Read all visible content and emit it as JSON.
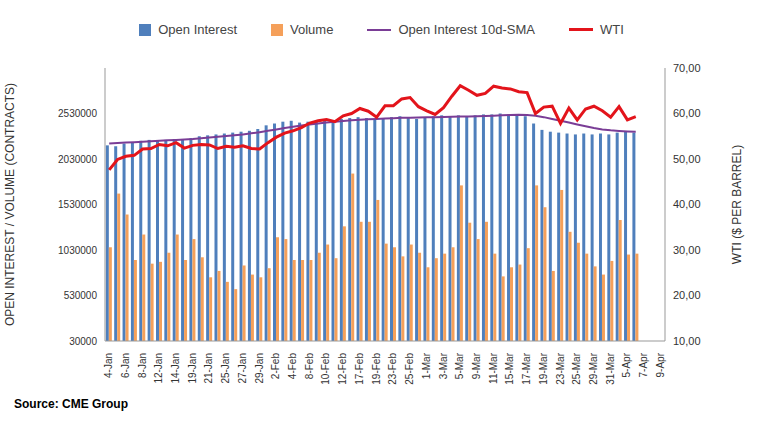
{
  "chart_data": {
    "type": "bar",
    "source": "Source: CME Group",
    "y_label": "OPEN INTEREST / VOLUME (CONTRACTS)",
    "y2_label": "WTI ($ PER BARREL)",
    "grid": false,
    "categories": [
      "4-Jan",
      null,
      "6-Jan",
      null,
      "8-Jan",
      null,
      "12-Jan",
      null,
      "14-Jan",
      null,
      "19-Jan",
      null,
      "21-Jan",
      null,
      "25-Jan",
      null,
      "27-Jan",
      null,
      "29-Jan",
      null,
      "2-Feb",
      null,
      "4-Feb",
      null,
      "8-Feb",
      null,
      "10-Feb",
      null,
      "12-Feb",
      null,
      "17-Feb",
      null,
      "19-Feb",
      null,
      "23-Feb",
      null,
      "25-Feb",
      null,
      "1-Mar",
      null,
      "3-Mar",
      null,
      "5-Mar",
      null,
      "9-Mar",
      null,
      "11-Mar",
      null,
      "15-Mar",
      null,
      "17-Mar",
      null,
      "19-Mar",
      null,
      "23-Mar",
      null,
      "25-Mar",
      null,
      "29-Mar",
      null,
      "31-Mar",
      null,
      "5-Apr",
      null,
      "7-Apr",
      null,
      "9-Apr"
    ],
    "series": [
      {
        "name": "Open Interest",
        "type": "bar",
        "color": "#4f7fbc",
        "values": [
          2180000,
          2170000,
          2200000,
          2210000,
          2230000,
          2240000,
          2230000,
          2240000,
          2250000,
          2240000,
          2260000,
          2280000,
          2290000,
          2300000,
          2310000,
          2320000,
          2330000,
          2340000,
          2360000,
          2400000,
          2420000,
          2440000,
          2450000,
          2430000,
          2440000,
          2450000,
          2460000,
          2450000,
          2470000,
          2480000,
          2490000,
          2480000,
          2470000,
          2480000,
          2490000,
          2500000,
          2480000,
          2470000,
          2490000,
          2500000,
          2510000,
          2500000,
          2510000,
          2500000,
          2510000,
          2520000,
          2520000,
          2530000,
          2520000,
          2510000,
          2500000,
          2420000,
          2350000,
          2330000,
          2320000,
          2310000,
          2300000,
          2310000,
          2300000,
          2310000,
          2300000,
          2320000,
          2330000,
          2320000,
          null,
          null,
          null
        ]
      },
      {
        "name": "Volume",
        "type": "bar",
        "color": "#f5a05a",
        "values": [
          1060000,
          1650000,
          1420000,
          920000,
          1200000,
          880000,
          900000,
          1000000,
          1200000,
          920000,
          1150000,
          950000,
          730000,
          800000,
          680000,
          600000,
          860000,
          760000,
          730000,
          830000,
          1170000,
          1150000,
          920000,
          920000,
          920000,
          1000000,
          1090000,
          940000,
          1290000,
          1870000,
          1340000,
          1340000,
          1580000,
          1100000,
          1060000,
          960000,
          1090000,
          1000000,
          840000,
          940000,
          990000,
          1060000,
          1740000,
          1330000,
          1150000,
          1340000,
          990000,
          740000,
          840000,
          870000,
          1050000,
          1740000,
          1500000,
          800000,
          1690000,
          1230000,
          1110000,
          990000,
          850000,
          760000,
          910000,
          1360000,
          980000,
          990000,
          null,
          null,
          null
        ]
      },
      {
        "name": "Open Interest 10d-SMA",
        "type": "line",
        "color": "#7a3d96",
        "values": [
          2200000,
          2205000,
          2210000,
          2215000,
          2220000,
          2225000,
          2230000,
          2235000,
          2240000,
          2245000,
          2250000,
          2258000,
          2266000,
          2274000,
          2282000,
          2290000,
          2300000,
          2312000,
          2325000,
          2340000,
          2355000,
          2370000,
          2385000,
          2398000,
          2410000,
          2420000,
          2430000,
          2440000,
          2448000,
          2455000,
          2462000,
          2466000,
          2470000,
          2474000,
          2478000,
          2482000,
          2484000,
          2486000,
          2488000,
          2490000,
          2492000,
          2494000,
          2496000,
          2498000,
          2500000,
          2503000,
          2506000,
          2510000,
          2513000,
          2515000,
          2514000,
          2505000,
          2490000,
          2470000,
          2450000,
          2430000,
          2410000,
          2390000,
          2370000,
          2355000,
          2345000,
          2338000,
          2333000,
          2330000,
          null,
          null,
          null
        ]
      },
      {
        "name": "WTI",
        "type": "line",
        "axis": "y2",
        "color": "#e3141b",
        "values": [
          47.6,
          49.9,
          50.6,
          50.8,
          52.2,
          52.3,
          53.2,
          52.9,
          53.6,
          52.4,
          53.0,
          53.2,
          53.1,
          52.3,
          52.8,
          52.6,
          52.9,
          52.3,
          52.2,
          53.6,
          54.8,
          55.7,
          56.2,
          56.9,
          57.9,
          58.4,
          58.7,
          58.2,
          59.5,
          60.0,
          61.1,
          60.5,
          59.2,
          61.7,
          61.7,
          63.2,
          63.5,
          61.5,
          60.6,
          59.8,
          61.3,
          63.8,
          66.1,
          65.1,
          64.0,
          64.4,
          66.0,
          65.6,
          65.4,
          64.8,
          64.6,
          60.0,
          61.4,
          61.6,
          57.8,
          61.2,
          58.6,
          61.0,
          61.6,
          60.6,
          59.2,
          61.5,
          58.6,
          59.3,
          null,
          null,
          null
        ]
      }
    ],
    "ylim": [
      30000,
      3030000
    ],
    "yticks": [
      30000,
      530000,
      1030000,
      1530000,
      2030000,
      2530000
    ],
    "y2lim": [
      10,
      70
    ],
    "y2ticks": [
      {
        "value": 10,
        "label": "10,00"
      },
      {
        "value": 20,
        "label": "20,00"
      },
      {
        "value": 30,
        "label": "30,00"
      },
      {
        "value": 40,
        "label": "40,00"
      },
      {
        "value": 50,
        "label": "50,00"
      },
      {
        "value": 60,
        "label": "60,00"
      },
      {
        "value": 70,
        "label": "70,00"
      }
    ]
  }
}
